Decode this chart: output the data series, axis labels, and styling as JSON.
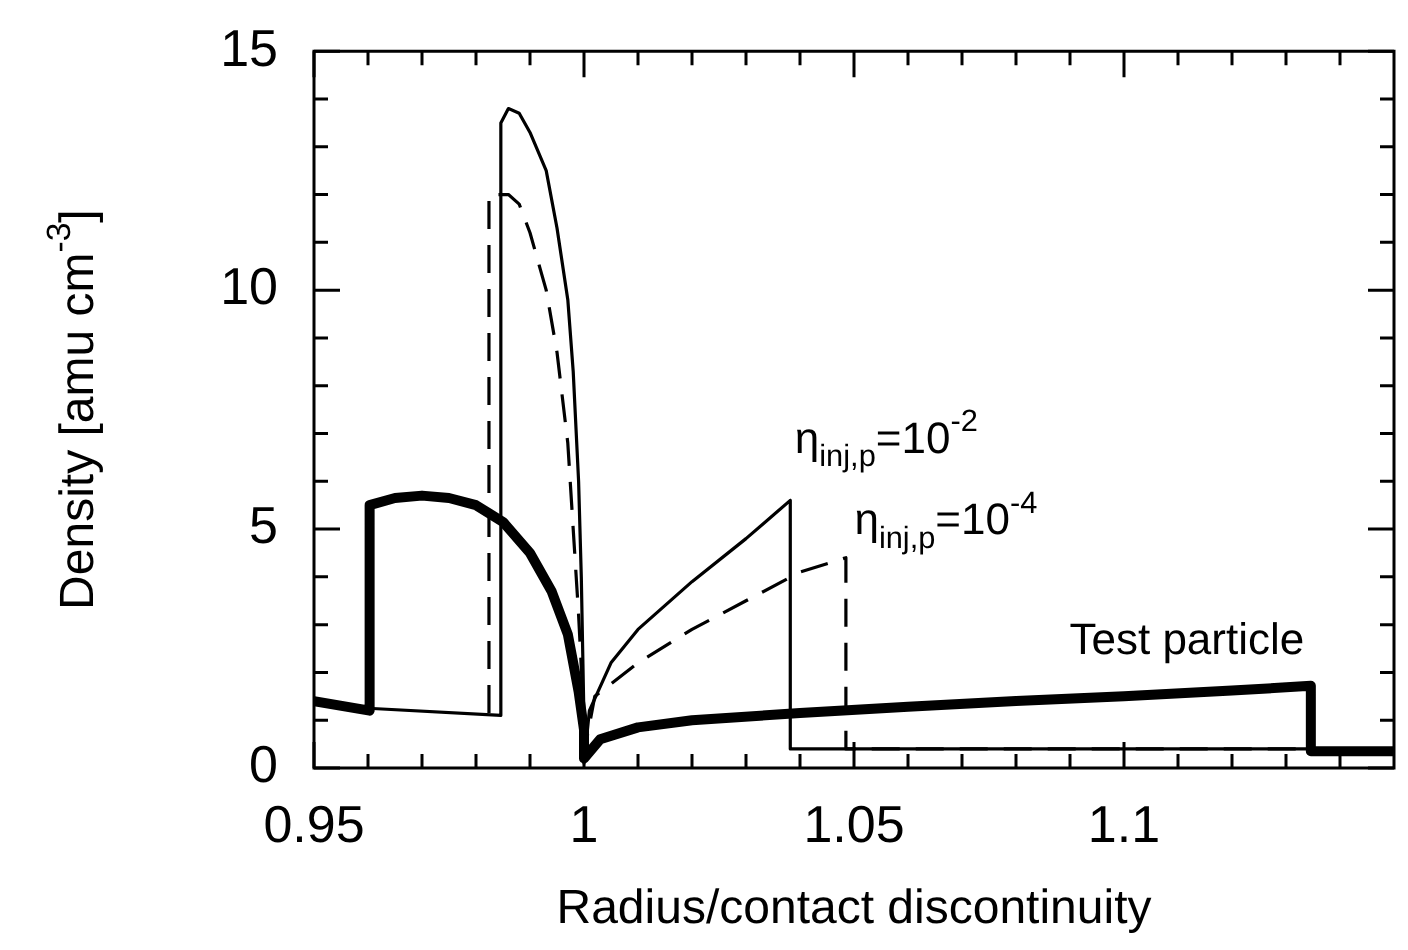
{
  "chart_data": {
    "type": "line",
    "xlabel": "Radius/contact discontinuity",
    "ylabel": "Density [amu cm$^{-3}$]",
    "xlim": [
      0.95,
      1.15
    ],
    "ylim": [
      0,
      15
    ],
    "xticks": [
      0.95,
      {
        "value": 0.96,
        "label": null
      },
      {
        "value": 0.97,
        "label": null
      },
      {
        "value": 0.98,
        "label": null
      },
      {
        "value": 0.99,
        "label": null
      },
      1,
      {
        "value": 1.01,
        "label": null
      },
      {
        "value": 1.02,
        "label": null
      },
      {
        "value": 1.03,
        "label": null
      },
      {
        "value": 1.04,
        "label": null
      },
      1.05,
      {
        "value": 1.06,
        "label": null
      },
      {
        "value": 1.07,
        "label": null
      },
      {
        "value": 1.08,
        "label": null
      },
      {
        "value": 1.09,
        "label": null
      },
      1.1,
      {
        "value": 1.11,
        "label": null
      },
      {
        "value": 1.12,
        "label": null
      },
      {
        "value": 1.13,
        "label": null
      },
      {
        "value": 1.14,
        "label": null
      }
    ],
    "yticks": [
      0,
      {
        "value": 1,
        "label": null
      },
      {
        "value": 2,
        "label": null
      },
      {
        "value": 3,
        "label": null
      },
      {
        "value": 4,
        "label": null
      },
      5,
      {
        "value": 6,
        "label": null
      },
      {
        "value": 7,
        "label": null
      },
      {
        "value": 8,
        "label": null
      },
      {
        "value": 9,
        "label": null
      },
      10,
      {
        "value": 11,
        "label": null
      },
      {
        "value": 12,
        "label": null
      },
      {
        "value": 13,
        "label": null
      },
      {
        "value": 14,
        "label": null
      },
      15
    ],
    "grid": false,
    "legend": "right",
    "marker": "none",
    "series": [
      {
        "name": "η$_{inj,p}$=10$^{-2}$",
        "color": "#000000",
        "line_style": "solid",
        "x": [
          0.95,
          0.96,
          0.9846,
          0.9846,
          0.986,
          0.988,
          0.99,
          0.993,
          0.995,
          0.997,
          0.998,
          0.999,
          0.9995,
          1.0,
          1.0,
          1.001,
          1.005,
          1.01,
          1.02,
          1.03,
          1.0382,
          1.0382,
          1.15
        ],
        "values": [
          1.4,
          1.25,
          1.1,
          13.5,
          13.8,
          13.7,
          13.3,
          12.5,
          11.3,
          9.8,
          8.3,
          6.0,
          4.0,
          1.0,
          0.1,
          1.2,
          2.2,
          2.9,
          3.9,
          4.8,
          5.6,
          0.4,
          0.4
        ]
      },
      {
        "name": "η$_{inj,p}$=10$^{-4}$",
        "color": "#000000",
        "line_style": "dashed",
        "x": [
          0.9824,
          0.9824,
          0.986,
          0.988,
          0.99,
          0.993,
          0.995,
          0.997,
          0.998,
          0.999,
          1.0,
          1.0,
          1.002,
          1.01,
          1.02,
          1.03,
          1.04,
          1.0485,
          1.0485,
          1.15
        ],
        "values": [
          1.15,
          12.0,
          12.0,
          11.8,
          11.2,
          10.0,
          8.7,
          6.8,
          5.0,
          3.2,
          1.0,
          0.3,
          1.5,
          2.2,
          2.9,
          3.5,
          4.1,
          4.4,
          0.4,
          0.4
        ]
      },
      {
        "name": "Test particle",
        "color": "#000000",
        "line_style": "solid",
        "x": [
          0.95,
          0.9603,
          0.9603,
          0.965,
          0.97,
          0.975,
          0.98,
          0.985,
          0.99,
          0.994,
          0.997,
          0.999,
          1.0,
          1.0,
          1.003,
          1.01,
          1.02,
          1.04,
          1.06,
          1.08,
          1.1,
          1.12,
          1.1346,
          1.1346,
          1.15
        ],
        "values": [
          1.4,
          1.2,
          5.5,
          5.65,
          5.7,
          5.65,
          5.5,
          5.15,
          4.5,
          3.7,
          2.8,
          1.6,
          0.8,
          0.2,
          0.6,
          0.85,
          1.0,
          1.15,
          1.28,
          1.4,
          1.5,
          1.62,
          1.72,
          0.35,
          0.35
        ]
      }
    ]
  }
}
